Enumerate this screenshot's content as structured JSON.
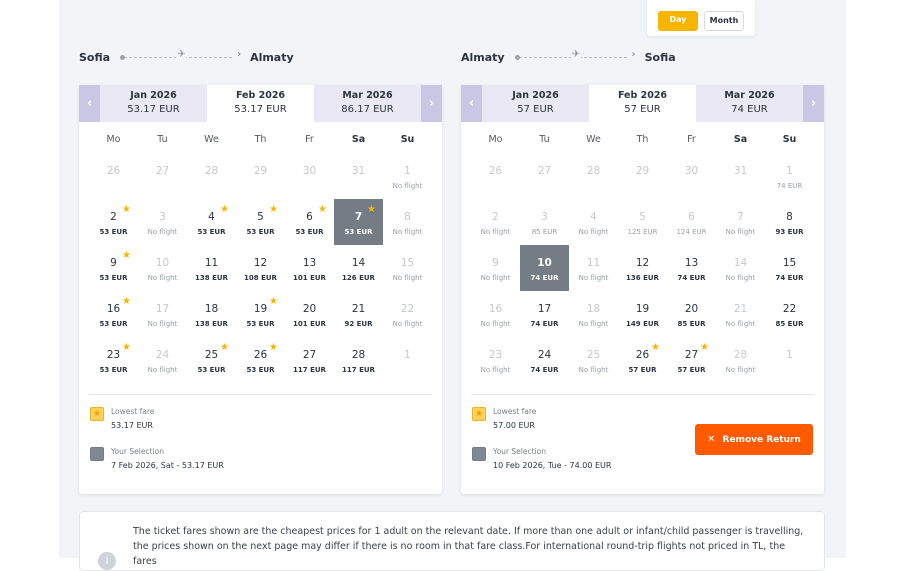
{
  "view_toggle": {
    "day": "Day",
    "month": "Month"
  },
  "legend_labels": {
    "lowest": "Lowest fare",
    "selection": "Your Selection"
  },
  "days_of_week": [
    "Mo",
    "Tu",
    "We",
    "Th",
    "Fr",
    "Sa",
    "Su"
  ],
  "outbound": {
    "from": "Sofia",
    "to": "Almaty",
    "months": [
      {
        "label": "Jan 2026",
        "price": "53.17 EUR"
      },
      {
        "label": "Feb 2026",
        "price": "53.17 EUR"
      },
      {
        "label": "Mar 2026",
        "price": "86.17 EUR"
      }
    ],
    "active_month": 1,
    "weeks": [
      [
        {
          "d": "26",
          "f": "",
          "s": "muted"
        },
        {
          "d": "27",
          "f": "",
          "s": "muted"
        },
        {
          "d": "28",
          "f": "",
          "s": "muted"
        },
        {
          "d": "29",
          "f": "",
          "s": "muted"
        },
        {
          "d": "30",
          "f": "",
          "s": "muted"
        },
        {
          "d": "31",
          "f": "",
          "s": "muted"
        },
        {
          "d": "1",
          "f": "No flight",
          "s": "nof"
        }
      ],
      [
        {
          "d": "2",
          "f": "53 EUR",
          "star": true
        },
        {
          "d": "3",
          "f": "No flight",
          "s": "nof"
        },
        {
          "d": "4",
          "f": "53 EUR",
          "star": true
        },
        {
          "d": "5",
          "f": "53 EUR",
          "star": true
        },
        {
          "d": "6",
          "f": "53 EUR",
          "star": true
        },
        {
          "d": "7",
          "f": "53 EUR",
          "star": true,
          "s": "sel"
        },
        {
          "d": "8",
          "f": "No flight",
          "s": "nof"
        }
      ],
      [
        {
          "d": "9",
          "f": "53 EUR",
          "star": true
        },
        {
          "d": "10",
          "f": "No flight",
          "s": "nof"
        },
        {
          "d": "11",
          "f": "138 EUR"
        },
        {
          "d": "12",
          "f": "108 EUR"
        },
        {
          "d": "13",
          "f": "101 EUR"
        },
        {
          "d": "14",
          "f": "126 EUR"
        },
        {
          "d": "15",
          "f": "No flight",
          "s": "nof"
        }
      ],
      [
        {
          "d": "16",
          "f": "53 EUR",
          "star": true
        },
        {
          "d": "17",
          "f": "No flight",
          "s": "nof"
        },
        {
          "d": "18",
          "f": "138 EUR"
        },
        {
          "d": "19",
          "f": "53 EUR",
          "star": true
        },
        {
          "d": "20",
          "f": "101 EUR"
        },
        {
          "d": "21",
          "f": "92 EUR"
        },
        {
          "d": "22",
          "f": "No flight",
          "s": "nof"
        }
      ],
      [
        {
          "d": "23",
          "f": "53 EUR",
          "star": true
        },
        {
          "d": "24",
          "f": "No flight",
          "s": "nof"
        },
        {
          "d": "25",
          "f": "53 EUR",
          "star": true
        },
        {
          "d": "26",
          "f": "53 EUR",
          "star": true
        },
        {
          "d": "27",
          "f": "117 EUR"
        },
        {
          "d": "28",
          "f": "117 EUR"
        },
        {
          "d": "1",
          "f": "",
          "s": "muted"
        }
      ]
    ],
    "lowest_fare": "53.17 EUR",
    "selection": "7 Feb 2026, Sat - 53.17 EUR"
  },
  "return": {
    "from": "Almaty",
    "to": "Sofia",
    "months": [
      {
        "label": "Jan 2026",
        "price": "57 EUR"
      },
      {
        "label": "Feb 2026",
        "price": "57 EUR"
      },
      {
        "label": "Mar 2026",
        "price": "74 EUR"
      }
    ],
    "active_month": 1,
    "weeks": [
      [
        {
          "d": "26",
          "f": "",
          "s": "muted"
        },
        {
          "d": "27",
          "f": "",
          "s": "muted"
        },
        {
          "d": "28",
          "f": "",
          "s": "muted"
        },
        {
          "d": "29",
          "f": "",
          "s": "muted"
        },
        {
          "d": "30",
          "f": "",
          "s": "muted"
        },
        {
          "d": "31",
          "f": "",
          "s": "muted"
        },
        {
          "d": "1",
          "f": "74 EUR",
          "s": "lowmute"
        }
      ],
      [
        {
          "d": "2",
          "f": "No flight",
          "s": "nof"
        },
        {
          "d": "3",
          "f": "85 EUR",
          "s": "lowmute"
        },
        {
          "d": "4",
          "f": "No flight",
          "s": "nof"
        },
        {
          "d": "5",
          "f": "125 EUR",
          "s": "lowmute"
        },
        {
          "d": "6",
          "f": "124 EUR",
          "s": "lowmute"
        },
        {
          "d": "7",
          "f": "No flight",
          "s": "nof"
        },
        {
          "d": "8",
          "f": "93 EUR"
        }
      ],
      [
        {
          "d": "9",
          "f": "No flight",
          "s": "nof"
        },
        {
          "d": "10",
          "f": "74 EUR",
          "s": "sel"
        },
        {
          "d": "11",
          "f": "No flight",
          "s": "nof"
        },
        {
          "d": "12",
          "f": "136 EUR"
        },
        {
          "d": "13",
          "f": "74 EUR"
        },
        {
          "d": "14",
          "f": "No flight",
          "s": "nof"
        },
        {
          "d": "15",
          "f": "74 EUR"
        }
      ],
      [
        {
          "d": "16",
          "f": "No flight",
          "s": "nof"
        },
        {
          "d": "17",
          "f": "74 EUR"
        },
        {
          "d": "18",
          "f": "No flight",
          "s": "nof"
        },
        {
          "d": "19",
          "f": "149 EUR"
        },
        {
          "d": "20",
          "f": "85 EUR"
        },
        {
          "d": "21",
          "f": "No flight",
          "s": "nof"
        },
        {
          "d": "22",
          "f": "85 EUR"
        }
      ],
      [
        {
          "d": "23",
          "f": "No flight",
          "s": "nof"
        },
        {
          "d": "24",
          "f": "74 EUR"
        },
        {
          "d": "25",
          "f": "No flight",
          "s": "nof"
        },
        {
          "d": "26",
          "f": "57 EUR",
          "star": true
        },
        {
          "d": "27",
          "f": "57 EUR",
          "star": true
        },
        {
          "d": "28",
          "f": "No flight",
          "s": "nof"
        },
        {
          "d": "1",
          "f": "",
          "s": "muted"
        }
      ]
    ],
    "lowest_fare": "57.00 EUR",
    "selection": "10 Feb 2026, Tue - 74.00 EUR",
    "remove_button": "Remove Return"
  },
  "info_text": "The ticket fares shown are the cheapest prices for 1 adult on the relevant date. If more than one adult or infant/child passenger is travelling, the prices shown on the next page may differ if there is no room in that fare class.For international round-trip flights not priced in TL, the fares",
  "colors": {
    "accent": "#f7b500",
    "cta": "#ff5a00",
    "selected": "#747c86",
    "nav": "#c9c7e3"
  }
}
